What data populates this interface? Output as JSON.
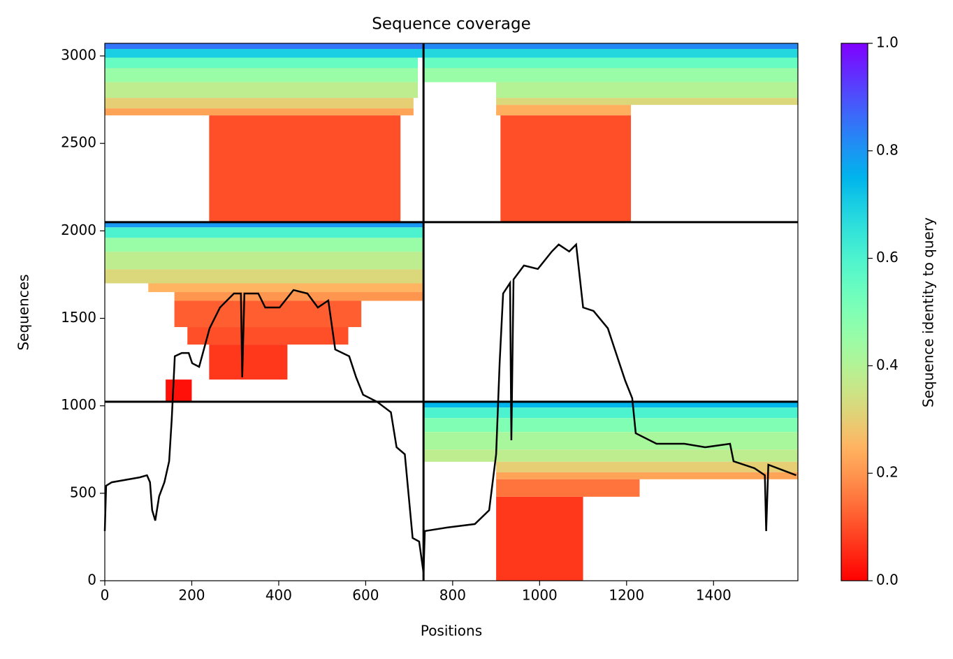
{
  "chart_data": {
    "type": "coverage",
    "title": "Sequence coverage",
    "x_label": "Positions",
    "y_label": "Sequences",
    "colorbar_label": "Sequence identity to query",
    "colormap": "rainbow_r",
    "xlim": [
      0,
      1594
    ],
    "ylim": [
      0,
      3072
    ],
    "xticks": [
      0,
      200,
      400,
      600,
      800,
      1000,
      1200,
      1400
    ],
    "yticks": [
      0,
      500,
      1000,
      1500,
      2000,
      2500,
      3000
    ],
    "clim": [
      0,
      1
    ],
    "cticks": [
      {
        "value": 0,
        "label": "0.0"
      },
      {
        "value": 0.2,
        "label": "0.2"
      },
      {
        "value": 0.4,
        "label": "0.4"
      },
      {
        "value": 0.6,
        "label": "0.6"
      },
      {
        "value": 0.8,
        "label": "0.8"
      },
      {
        "value": 1,
        "label": "1.0"
      }
    ],
    "chain_boundaries": [
      733
    ],
    "group_boundaries": [
      1023,
      2050
    ],
    "blocks": [
      {
        "x0": 0,
        "x1": 733,
        "y0": 3040,
        "y1": 3072,
        "identity": 0.85
      },
      {
        "x0": 0,
        "x1": 733,
        "y0": 2990,
        "y1": 3040,
        "identity": 0.7
      },
      {
        "x0": 0,
        "x1": 720,
        "y0": 2930,
        "y1": 2990,
        "identity": 0.55
      },
      {
        "x0": 0,
        "x1": 720,
        "y0": 2850,
        "y1": 2930,
        "identity": 0.45
      },
      {
        "x0": 0,
        "x1": 720,
        "y0": 2760,
        "y1": 2850,
        "identity": 0.38
      },
      {
        "x0": 0,
        "x1": 710,
        "y0": 2700,
        "y1": 2760,
        "identity": 0.3
      },
      {
        "x0": 0,
        "x1": 710,
        "y0": 2660,
        "y1": 2700,
        "identity": 0.22
      },
      {
        "x0": 240,
        "x1": 680,
        "y0": 2050,
        "y1": 2660,
        "identity": 0.1
      },
      {
        "x0": 733,
        "x1": 1594,
        "y0": 3040,
        "y1": 3072,
        "identity": 0.82
      },
      {
        "x0": 733,
        "x1": 1594,
        "y0": 2990,
        "y1": 3040,
        "identity": 0.68
      },
      {
        "x0": 733,
        "x1": 1594,
        "y0": 2930,
        "y1": 2990,
        "identity": 0.55
      },
      {
        "x0": 733,
        "x1": 1594,
        "y0": 2850,
        "y1": 2930,
        "identity": 0.45
      },
      {
        "x0": 900,
        "x1": 1594,
        "y0": 2760,
        "y1": 2850,
        "identity": 0.4
      },
      {
        "x0": 900,
        "x1": 1594,
        "y0": 2720,
        "y1": 2760,
        "identity": 0.32
      },
      {
        "x0": 900,
        "x1": 1210,
        "y0": 2660,
        "y1": 2720,
        "identity": 0.24
      },
      {
        "x0": 910,
        "x1": 1210,
        "y0": 2050,
        "y1": 2660,
        "identity": 0.1
      },
      {
        "x0": 0,
        "x1": 733,
        "y0": 2020,
        "y1": 2050,
        "identity": 0.8
      },
      {
        "x0": 0,
        "x1": 733,
        "y0": 1960,
        "y1": 2020,
        "identity": 0.6
      },
      {
        "x0": 0,
        "x1": 733,
        "y0": 1880,
        "y1": 1960,
        "identity": 0.45
      },
      {
        "x0": 0,
        "x1": 733,
        "y0": 1780,
        "y1": 1880,
        "identity": 0.38
      },
      {
        "x0": 0,
        "x1": 733,
        "y0": 1700,
        "y1": 1780,
        "identity": 0.32
      },
      {
        "x0": 100,
        "x1": 733,
        "y0": 1650,
        "y1": 1700,
        "identity": 0.25
      },
      {
        "x0": 160,
        "x1": 733,
        "y0": 1600,
        "y1": 1650,
        "identity": 0.2
      },
      {
        "x0": 160,
        "x1": 590,
        "y0": 1450,
        "y1": 1600,
        "identity": 0.12
      },
      {
        "x0": 190,
        "x1": 560,
        "y0": 1350,
        "y1": 1450,
        "identity": 0.1
      },
      {
        "x0": 240,
        "x1": 420,
        "y0": 1150,
        "y1": 1350,
        "identity": 0.07
      },
      {
        "x0": 140,
        "x1": 200,
        "y0": 1023,
        "y1": 1150,
        "identity": 0.02
      },
      {
        "x0": 733,
        "x1": 1594,
        "y0": 990,
        "y1": 1023,
        "identity": 0.75
      },
      {
        "x0": 733,
        "x1": 1594,
        "y0": 930,
        "y1": 990,
        "identity": 0.6
      },
      {
        "x0": 733,
        "x1": 1594,
        "y0": 850,
        "y1": 930,
        "identity": 0.5
      },
      {
        "x0": 733,
        "x1": 1594,
        "y0": 750,
        "y1": 850,
        "identity": 0.42
      },
      {
        "x0": 733,
        "x1": 1594,
        "y0": 680,
        "y1": 750,
        "identity": 0.38
      },
      {
        "x0": 900,
        "x1": 1594,
        "y0": 620,
        "y1": 680,
        "identity": 0.3
      },
      {
        "x0": 900,
        "x1": 1594,
        "y0": 580,
        "y1": 620,
        "identity": 0.22
      },
      {
        "x0": 900,
        "x1": 1230,
        "y0": 480,
        "y1": 580,
        "identity": 0.15
      },
      {
        "x0": 900,
        "x1": 1100,
        "y0": 0,
        "y1": 480,
        "identity": 0.07
      }
    ],
    "coverage": {
      "color": "#000000",
      "x": [
        0,
        3,
        16,
        80,
        97,
        104,
        109,
        116,
        125,
        137,
        148,
        154,
        161,
        177,
        193,
        201,
        217,
        241,
        265,
        297,
        313,
        316,
        321,
        353,
        369,
        402,
        434,
        466,
        490,
        514,
        530,
        562,
        578,
        594,
        626,
        658,
        671,
        690,
        708,
        723,
        733,
        736,
        787,
        851,
        884,
        900,
        908,
        916,
        932,
        935,
        940,
        964,
        996,
        1028,
        1044,
        1068,
        1084,
        1100,
        1124,
        1157,
        1173,
        1197,
        1213,
        1221,
        1269,
        1333,
        1381,
        1438,
        1446,
        1494,
        1518,
        1521,
        1526,
        1590
      ],
      "values": [
        284,
        543,
        563,
        591,
        603,
        563,
        403,
        344,
        483,
        563,
        683,
        923,
        1283,
        1302,
        1302,
        1243,
        1223,
        1443,
        1562,
        1642,
        1642,
        1163,
        1642,
        1642,
        1562,
        1562,
        1662,
        1642,
        1562,
        1602,
        1322,
        1283,
        1163,
        1063,
        1023,
        963,
        763,
        723,
        244,
        224,
        44,
        284,
        304,
        324,
        403,
        723,
        1243,
        1642,
        1702,
        803,
        1722,
        1802,
        1782,
        1882,
        1922,
        1882,
        1922,
        1562,
        1542,
        1443,
        1322,
        1143,
        1043,
        843,
        783,
        783,
        763,
        783,
        683,
        643,
        603,
        284,
        663,
        603
      ]
    }
  }
}
